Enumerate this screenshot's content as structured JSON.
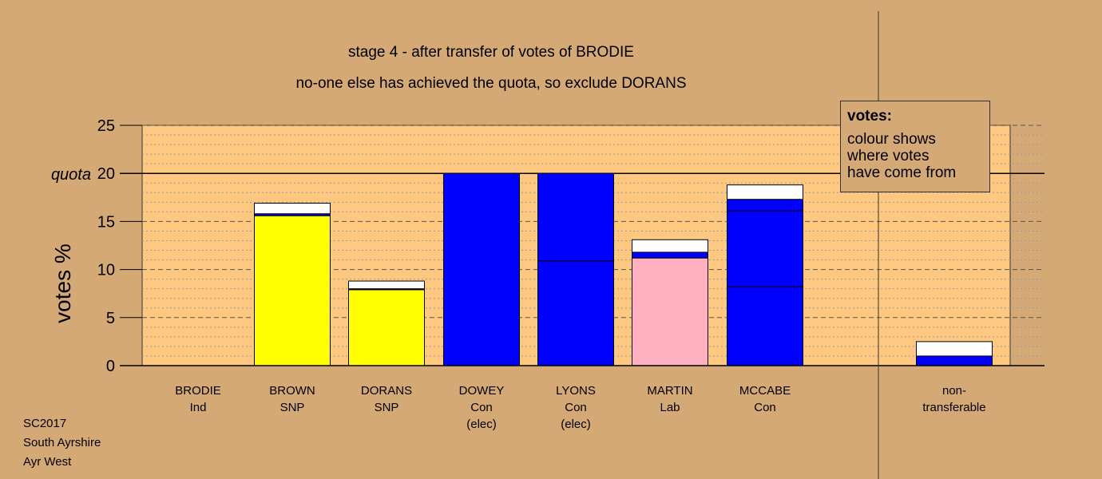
{
  "title": "stage 4 - after transfer of votes of BRODIE",
  "subtitle": "no-one else has achieved the quota, so exclude DORANS",
  "legend": {
    "title": "votes:",
    "text": "colour shows\nwhere votes\nhave come from"
  },
  "footer": [
    "SC2017",
    "South Ayrshire",
    "Ayr West"
  ],
  "colors": {
    "background": "#d4a976",
    "plot_area": "#ffc880",
    "SNP": "#ffff00",
    "Con": "#0000ff",
    "Lab": "#ffb0c0",
    "transferred": "#ffffff"
  },
  "chart_data": {
    "type": "bar",
    "stacked": true,
    "ylabel": "votes %",
    "ylim": [
      0,
      25
    ],
    "yticks": [
      0,
      5,
      10,
      15,
      20,
      25
    ],
    "quota": 20,
    "quota_label": "quota",
    "grid": true,
    "categories": [
      {
        "name": "BRODIE",
        "party": "Ind",
        "note": ""
      },
      {
        "name": "BROWN",
        "party": "SNP",
        "note": ""
      },
      {
        "name": "DORANS",
        "party": "SNP",
        "note": ""
      },
      {
        "name": "DOWEY",
        "party": "Con",
        "note": "(elec)"
      },
      {
        "name": "LYONS",
        "party": "Con",
        "note": "(elec)"
      },
      {
        "name": "MARTIN",
        "party": "Lab",
        "note": ""
      },
      {
        "name": "MCCABE",
        "party": "Con",
        "note": ""
      },
      {
        "name": "non-",
        "party": "transferable",
        "note": ""
      }
    ],
    "bars": [
      [],
      [
        {
          "value": 15.6,
          "color": "#ffff00"
        },
        {
          "value": 0.2,
          "color": "#0000ff"
        },
        {
          "value": 1.1,
          "color": "#ffffff"
        }
      ],
      [
        {
          "value": 7.9,
          "color": "#ffff00"
        },
        {
          "value": 0.1,
          "color": "#0000ff"
        },
        {
          "value": 0.8,
          "color": "#ffffff"
        }
      ],
      [
        {
          "value": 20.0,
          "color": "#0000ff"
        }
      ],
      [
        {
          "value": 10.9,
          "color": "#0000ff"
        },
        {
          "value": 9.1,
          "color": "#0000ff"
        }
      ],
      [
        {
          "value": 11.2,
          "color": "#ffb0c0"
        },
        {
          "value": 0.6,
          "color": "#0000ff"
        },
        {
          "value": 1.3,
          "color": "#ffffff"
        }
      ],
      [
        {
          "value": 8.2,
          "color": "#0000ff"
        },
        {
          "value": 7.9,
          "color": "#0000ff"
        },
        {
          "value": 1.2,
          "color": "#0000ff"
        },
        {
          "value": 1.5,
          "color": "#ffffff"
        }
      ],
      [
        {
          "value": 1.0,
          "color": "#0000ff"
        },
        {
          "value": 1.5,
          "color": "#ffffff"
        }
      ]
    ]
  }
}
